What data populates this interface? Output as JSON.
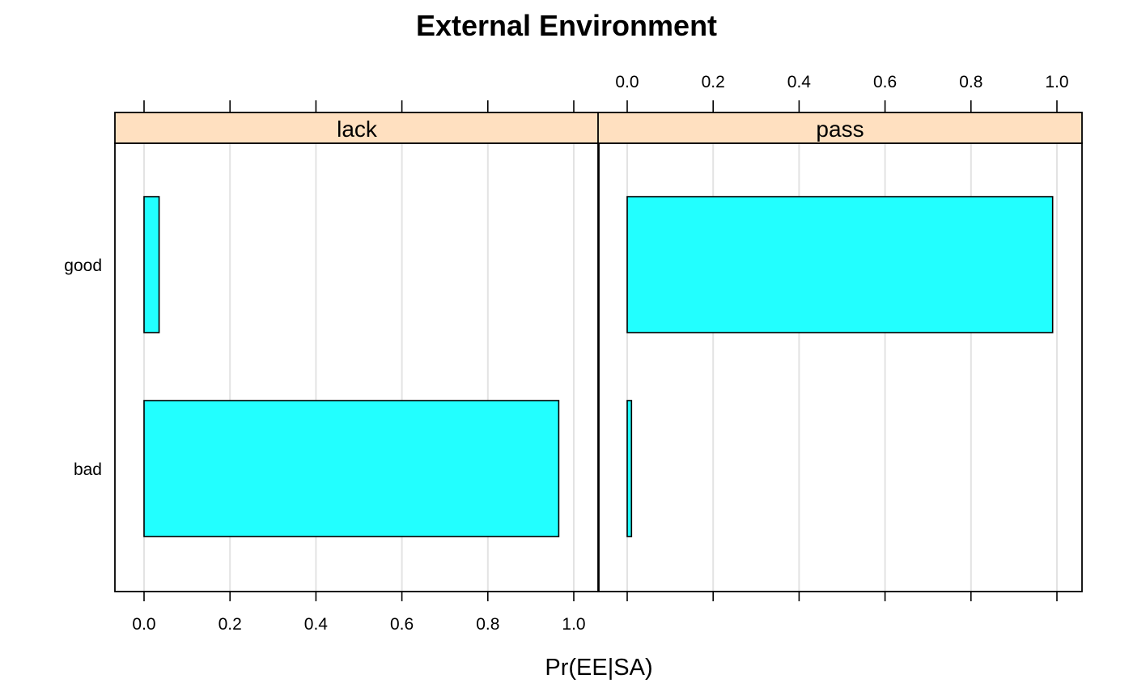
{
  "chart_data": {
    "type": "bar",
    "orientation": "horizontal",
    "title": "External Environment",
    "xlabel": "Pr(EE|SA)",
    "ylabel": "",
    "categories": [
      "bad",
      "good"
    ],
    "xlim": [
      0,
      1
    ],
    "x_ticks": [
      "0.0",
      "0.2",
      "0.4",
      "0.6",
      "0.8",
      "1.0"
    ],
    "grid": true,
    "bar_color": "#22FFFF",
    "strip_color": "#FFE0C0",
    "panels": [
      {
        "name": "lack",
        "values": [
          0.965,
          0.035
        ]
      },
      {
        "name": "pass",
        "values": [
          0.01,
          0.99
        ]
      }
    ]
  }
}
